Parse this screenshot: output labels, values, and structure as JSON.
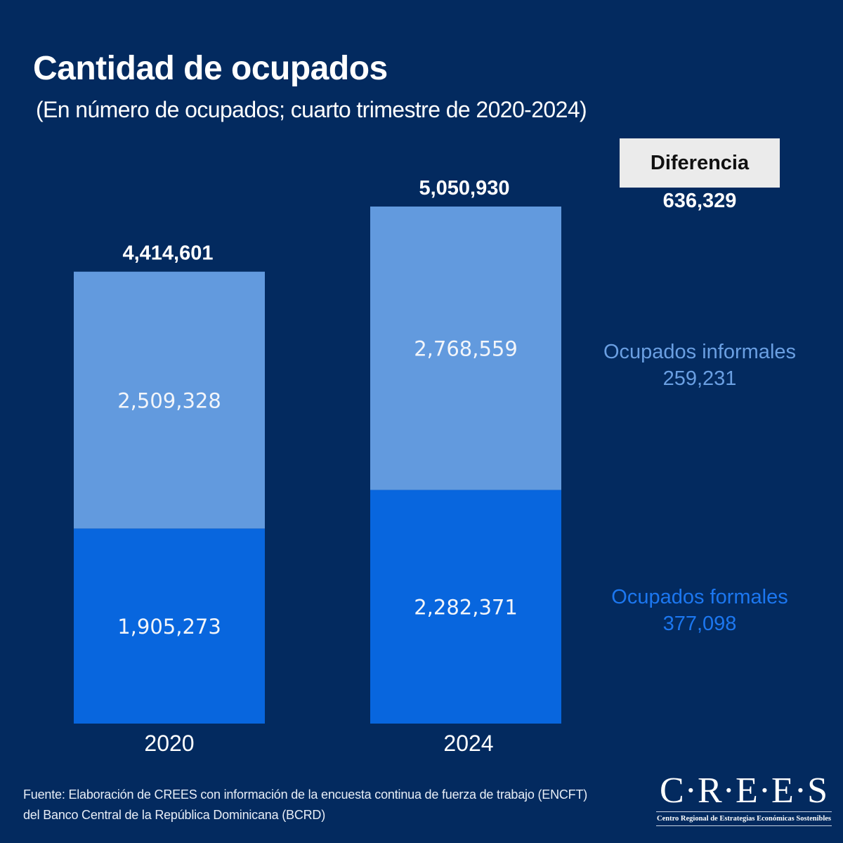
{
  "header": {
    "title": "Cantidad de ocupados",
    "subtitle": "(En número de ocupados; cuarto trimestre de 2020-2024)"
  },
  "difference": {
    "label": "Diferencia",
    "total": "636,329",
    "informal_label": "Ocupados informales",
    "informal_value": "259,231",
    "formal_label": "Ocupados formales",
    "formal_value": "377,098"
  },
  "colors": {
    "background": "#032a5f",
    "informal": "#629ade",
    "formal": "#0866de",
    "informal_text": "#6a9fe2",
    "formal_text": "#1c77f0"
  },
  "chart_data": {
    "type": "bar",
    "stacked": true,
    "title": "Cantidad de ocupados",
    "subtitle": "(En número de ocupados; cuarto trimestre de 2020-2024)",
    "categories": [
      "2020",
      "2024"
    ],
    "series": [
      {
        "name": "Ocupados formales",
        "values": [
          1905273,
          2282371
        ],
        "labels": [
          "1,905,273",
          "2,282,371"
        ]
      },
      {
        "name": "Ocupados informales",
        "values": [
          2509328,
          2768559
        ],
        "labels": [
          "2,509,328",
          "2,768,559"
        ]
      }
    ],
    "totals": [
      4414601,
      5050930
    ],
    "total_labels": [
      "4,414,601",
      "5,050,930"
    ],
    "xlabel": "",
    "ylabel": "",
    "ylim": [
      0,
      5050930
    ],
    "grid": false,
    "legend": "right (inline labels)"
  },
  "footer": {
    "source": "Fuente: Elaboración de CREES con información de la encuesta continua de fuerza de trabajo (ENCFT) del Banco Central de la República Dominicana (BCRD)"
  },
  "logo": {
    "name": "C·R·E·E·S",
    "tagline": "Centro Regional de Estrategias Económicas Sostenibles"
  }
}
